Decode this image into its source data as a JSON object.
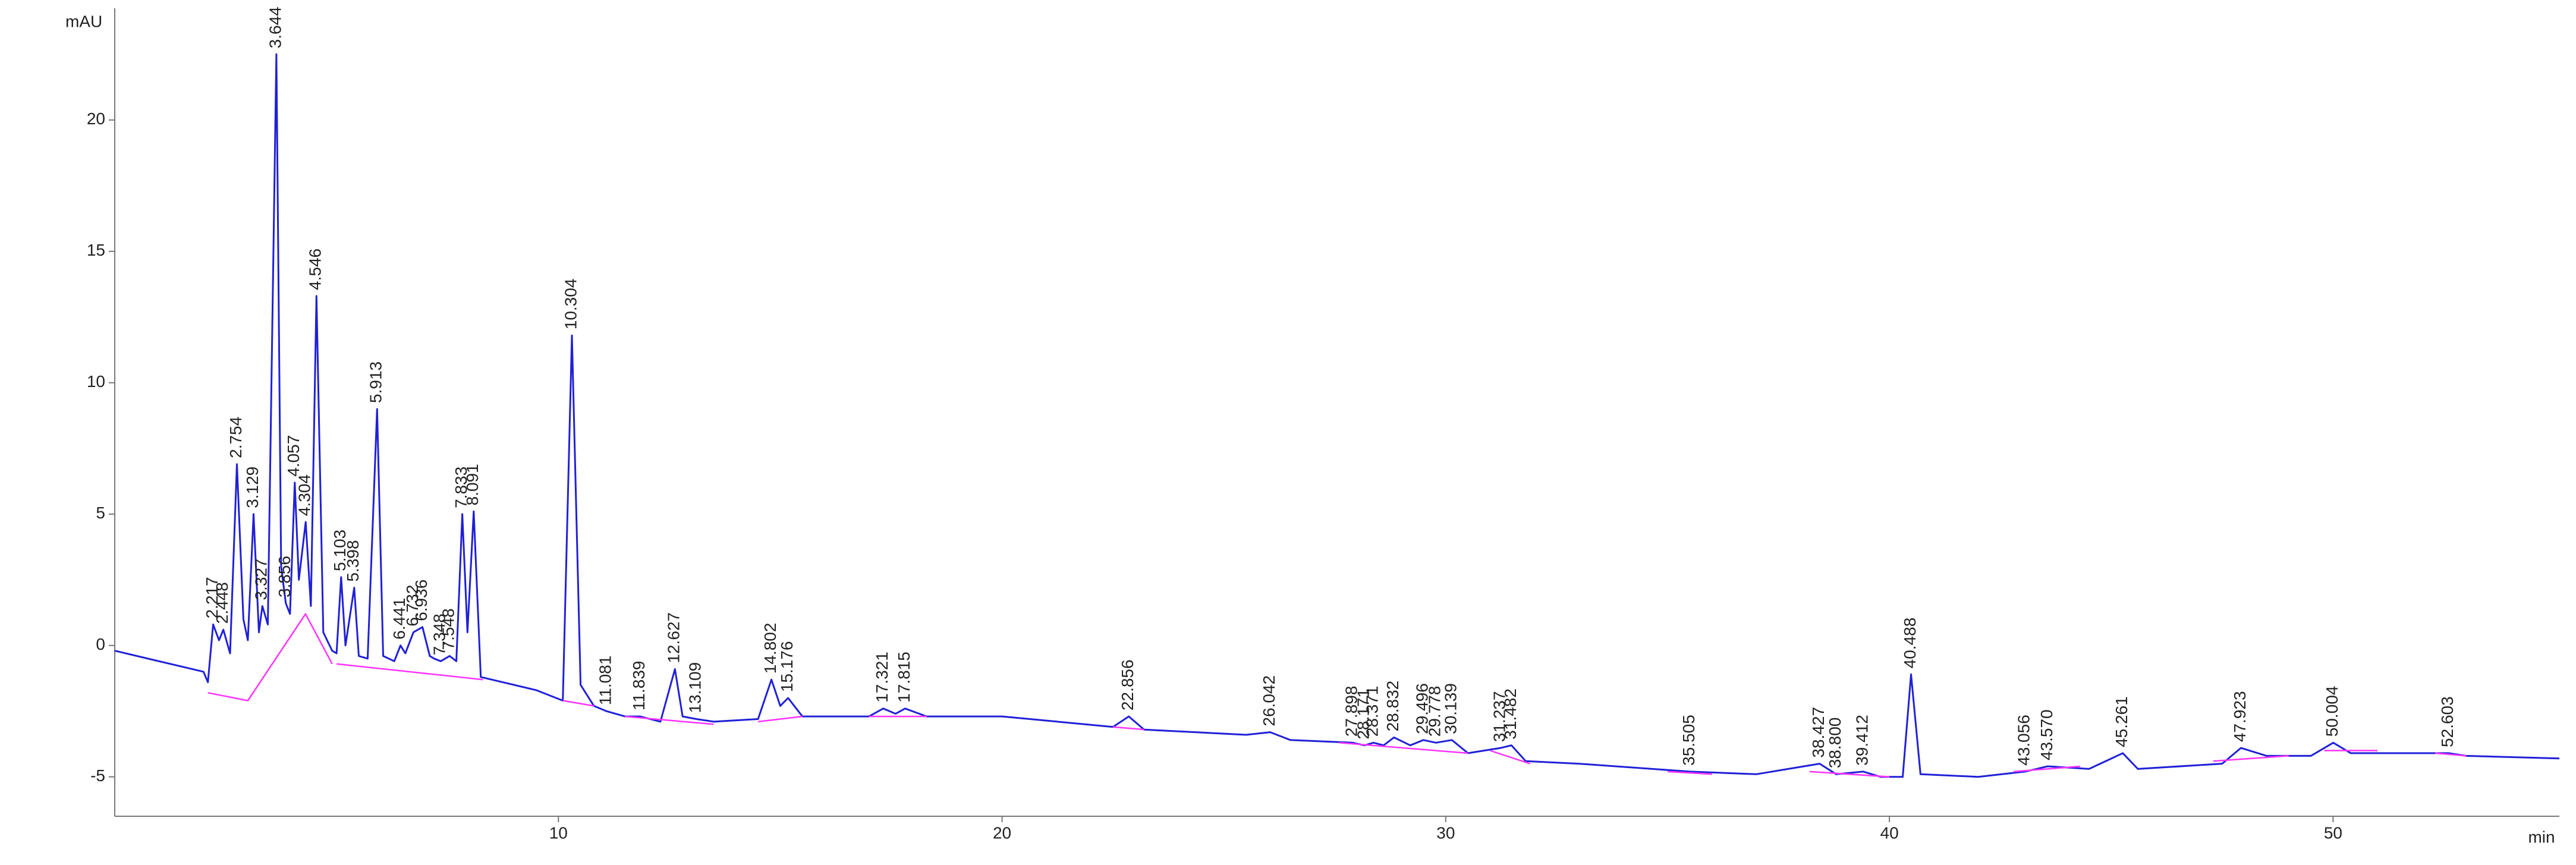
{
  "chart_data": {
    "type": "line",
    "ylabel": "mAU",
    "xlabel": "min",
    "xlim": [
      0,
      55.1
    ],
    "ylim": [
      -6.5,
      24.25
    ],
    "xticks": [
      10,
      20,
      30,
      40,
      50
    ],
    "yticks": [
      -5,
      0,
      5,
      10,
      15,
      20
    ],
    "series": [
      {
        "color": "#2020d8",
        "x": [
          0,
          1.5,
          2.0,
          2.1,
          2.217,
          2.35,
          2.448,
          2.6,
          2.754,
          2.9,
          3.0,
          3.129,
          3.25,
          3.327,
          3.45,
          3.644,
          3.75,
          3.856,
          3.95,
          4.057,
          4.15,
          4.304,
          4.42,
          4.546,
          4.7,
          4.9,
          5.0,
          5.103,
          5.2,
          5.398,
          5.5,
          5.7,
          5.913,
          6.05,
          6.3,
          6.441,
          6.55,
          6.732,
          6.936,
          7.1,
          7.2,
          7.348,
          7.548,
          7.7,
          7.833,
          7.95,
          8.091,
          8.25,
          8.5,
          9.5,
          10.1,
          10.304,
          10.5,
          10.8,
          11.081,
          11.5,
          11.839,
          12.3,
          12.627,
          12.8,
          13.109,
          13.5,
          14.5,
          14.802,
          15.0,
          15.176,
          15.5,
          17.0,
          17.321,
          17.6,
          17.815,
          18.3,
          20,
          22.5,
          22.856,
          23.2,
          25.5,
          26.042,
          26.5,
          27.898,
          28.171,
          28.371,
          28.6,
          28.832,
          29.2,
          29.496,
          29.778,
          30.139,
          30.5,
          31.237,
          31.482,
          31.8,
          33,
          35.505,
          37,
          38.427,
          38.8,
          39.412,
          39.8,
          40.3,
          40.488,
          40.7,
          42,
          43.056,
          43.57,
          44.5,
          45.261,
          45.6,
          47.5,
          47.923,
          48.5,
          49.5,
          50.004,
          50.4,
          52.603,
          53,
          55.1
        ],
        "values": [
          -0.2,
          -0.8,
          -1.0,
          -1.4,
          0.8,
          0.2,
          0.6,
          -0.3,
          6.9,
          1.0,
          0.2,
          5.0,
          0.5,
          1.5,
          0.8,
          22.5,
          3.0,
          1.6,
          1.2,
          6.2,
          2.5,
          4.7,
          1.5,
          13.3,
          0.5,
          -0.2,
          -0.3,
          2.6,
          0.0,
          2.2,
          -0.4,
          -0.5,
          9.0,
          -0.4,
          -0.6,
          0.0,
          -0.3,
          0.5,
          0.7,
          -0.4,
          -0.5,
          -0.6,
          -0.4,
          -0.6,
          5.0,
          0.5,
          5.1,
          -1.2,
          -1.3,
          -1.7,
          -2.1,
          11.8,
          -1.5,
          -2.3,
          -2.5,
          -2.7,
          -2.7,
          -2.9,
          -0.9,
          -2.7,
          -2.8,
          -2.9,
          -2.8,
          -1.3,
          -2.3,
          -2.0,
          -2.7,
          -2.7,
          -2.4,
          -2.6,
          -2.4,
          -2.7,
          -2.7,
          -3.1,
          -2.7,
          -3.2,
          -3.4,
          -3.3,
          -3.6,
          -3.7,
          -3.8,
          -3.7,
          -3.8,
          -3.5,
          -3.8,
          -3.6,
          -3.7,
          -3.6,
          -4.1,
          -3.9,
          -3.8,
          -4.4,
          -4.5,
          -4.8,
          -4.9,
          -4.5,
          -4.9,
          -4.8,
          -5.0,
          -5.0,
          -1.1,
          -4.9,
          -5.0,
          -4.8,
          -4.6,
          -4.7,
          -4.1,
          -4.7,
          -4.5,
          -3.9,
          -4.2,
          -4.2,
          -3.7,
          -4.1,
          -4.1,
          -4.2,
          -4.3
        ]
      },
      {
        "color": "#ff33ff",
        "x": [
          2.1,
          3.0,
          4.3,
          4.9,
          null,
          5.0,
          8.3,
          null,
          10.1,
          10.8,
          null,
          11.5,
          13.5,
          null,
          14.5,
          15.5,
          null,
          17.0,
          18.3,
          null,
          22.5,
          23.2,
          null,
          27.6,
          30.5,
          null,
          31.0,
          31.9,
          null,
          35,
          36,
          null,
          38.2,
          40.0,
          null,
          42.8,
          44.3,
          null,
          47.3,
          49.0,
          null,
          49.8,
          51,
          null,
          52.3,
          53.0
        ],
        "values": [
          -1.8,
          -2.1,
          1.2,
          -0.7,
          null,
          -0.7,
          -1.3,
          null,
          -2.1,
          -2.3,
          null,
          -2.7,
          -3.0,
          null,
          -2.9,
          -2.7,
          null,
          -2.7,
          -2.7,
          null,
          -3.1,
          -3.2,
          null,
          -3.7,
          -4.1,
          null,
          -4.0,
          -4.5,
          null,
          -4.8,
          -4.9,
          null,
          -4.8,
          -5.0,
          null,
          -4.8,
          -4.6,
          null,
          -4.4,
          -4.2,
          null,
          -4.0,
          -4.0,
          null,
          -4.1,
          -4.2
        ]
      }
    ],
    "annotations": [
      {
        "text": "2.217",
        "x": 2.217,
        "y": 0.8
      },
      {
        "text": "2.448",
        "x": 2.448,
        "y": 0.6
      },
      {
        "text": "2.754",
        "x": 2.754,
        "y": 6.9
      },
      {
        "text": "3.129",
        "x": 3.129,
        "y": 5.0
      },
      {
        "text": "3.327",
        "x": 3.327,
        "y": 1.5
      },
      {
        "text": "3.644",
        "x": 3.644,
        "y": 22.5
      },
      {
        "text": "3.856",
        "x": 3.856,
        "y": 1.6
      },
      {
        "text": "4.057",
        "x": 4.057,
        "y": 6.2
      },
      {
        "text": "4.304",
        "x": 4.304,
        "y": 4.7
      },
      {
        "text": "4.546",
        "x": 4.546,
        "y": 13.3
      },
      {
        "text": "5.103",
        "x": 5.103,
        "y": 2.6
      },
      {
        "text": "5.398",
        "x": 5.398,
        "y": 2.2
      },
      {
        "text": "5.913",
        "x": 5.913,
        "y": 9.0
      },
      {
        "text": "6.441",
        "x": 6.441,
        "y": 0.0
      },
      {
        "text": "6.732",
        "x": 6.732,
        "y": 0.5
      },
      {
        "text": "6.936",
        "x": 6.936,
        "y": 0.7
      },
      {
        "text": "7.348",
        "x": 7.348,
        "y": -0.6
      },
      {
        "text": "7.548",
        "x": 7.548,
        "y": -0.4
      },
      {
        "text": "7.833",
        "x": 7.833,
        "y": 5.0
      },
      {
        "text": "8.091",
        "x": 8.091,
        "y": 5.1
      },
      {
        "text": "10.304",
        "x": 10.304,
        "y": 11.8
      },
      {
        "text": "11.081",
        "x": 11.081,
        "y": -2.5
      },
      {
        "text": "11.839",
        "x": 11.839,
        "y": -2.7
      },
      {
        "text": "12.627",
        "x": 12.627,
        "y": -0.9
      },
      {
        "text": "13.109",
        "x": 13.109,
        "y": -2.8
      },
      {
        "text": "14.802",
        "x": 14.802,
        "y": -1.3
      },
      {
        "text": "15.176",
        "x": 15.176,
        "y": -2.0
      },
      {
        "text": "17.321",
        "x": 17.321,
        "y": -2.4
      },
      {
        "text": "17.815",
        "x": 17.815,
        "y": -2.4
      },
      {
        "text": "22.856",
        "x": 22.856,
        "y": -2.7
      },
      {
        "text": "26.042",
        "x": 26.042,
        "y": -3.3
      },
      {
        "text": "27.898",
        "x": 27.898,
        "y": -3.7
      },
      {
        "text": "28.171",
        "x": 28.171,
        "y": -3.8
      },
      {
        "text": "28.371",
        "x": 28.371,
        "y": -3.7
      },
      {
        "text": "28.832",
        "x": 28.832,
        "y": -3.5
      },
      {
        "text": "29.496",
        "x": 29.496,
        "y": -3.6
      },
      {
        "text": "29.778",
        "x": 29.778,
        "y": -3.7
      },
      {
        "text": "30.139",
        "x": 30.139,
        "y": -3.6
      },
      {
        "text": "31.237",
        "x": 31.237,
        "y": -3.9
      },
      {
        "text": "31.482",
        "x": 31.482,
        "y": -3.8
      },
      {
        "text": "35.505",
        "x": 35.505,
        "y": -4.8
      },
      {
        "text": "38.427",
        "x": 38.427,
        "y": -4.5
      },
      {
        "text": "38.800",
        "x": 38.8,
        "y": -4.9
      },
      {
        "text": "39.412",
        "x": 39.412,
        "y": -4.8
      },
      {
        "text": "40.488",
        "x": 40.488,
        "y": -1.1
      },
      {
        "text": "43.056",
        "x": 43.056,
        "y": -4.8
      },
      {
        "text": "43.570",
        "x": 43.57,
        "y": -4.6
      },
      {
        "text": "45.261",
        "x": 45.261,
        "y": -4.1
      },
      {
        "text": "47.923",
        "x": 47.923,
        "y": -3.9
      },
      {
        "text": "50.004",
        "x": 50.004,
        "y": -3.7
      },
      {
        "text": "52.603",
        "x": 52.603,
        "y": -4.1
      }
    ]
  }
}
